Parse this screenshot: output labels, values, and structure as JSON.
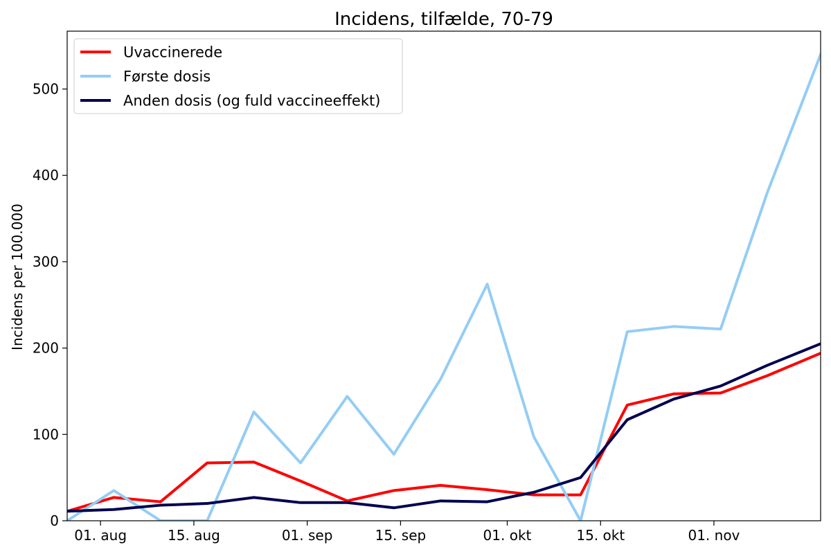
{
  "chart_data": {
    "type": "line",
    "title": "Incidens, tilfælde, 70-79",
    "xlabel": "",
    "ylabel": "Incidens per 100.000",
    "ylim": [
      0,
      567
    ],
    "yticks": [
      0,
      100,
      200,
      300,
      400,
      500
    ],
    "xlim": [
      "2021-07-27",
      "2021-11-17"
    ],
    "xticks": [
      {
        "date": "2021-08-01",
        "label": "01. aug"
      },
      {
        "date": "2021-08-15",
        "label": "15. aug"
      },
      {
        "date": "2021-09-01",
        "label": "01. sep"
      },
      {
        "date": "2021-09-15",
        "label": "15. sep"
      },
      {
        "date": "2021-10-01",
        "label": "01. okt"
      },
      {
        "date": "2021-10-15",
        "label": "15. okt"
      },
      {
        "date": "2021-11-01",
        "label": "01. nov"
      }
    ],
    "grid": false,
    "legend_position": "top-left",
    "x": [
      "2021-07-27",
      "2021-08-03",
      "2021-08-10",
      "2021-08-17",
      "2021-08-24",
      "2021-08-31",
      "2021-09-07",
      "2021-09-14",
      "2021-09-21",
      "2021-09-28",
      "2021-10-05",
      "2021-10-12",
      "2021-10-19",
      "2021-10-26",
      "2021-11-02",
      "2021-11-09",
      "2021-11-17"
    ],
    "series": [
      {
        "name": "Uvaccinerede",
        "color": "#ff0000",
        "values": [
          11,
          27,
          22,
          67,
          68,
          46,
          23,
          35,
          41,
          36,
          30,
          30,
          134,
          147,
          148,
          168,
          194
        ]
      },
      {
        "name": "Første dosis",
        "color": "#94cdf5",
        "values": [
          0,
          35,
          0,
          0,
          126,
          67,
          144,
          77,
          164,
          274,
          97,
          0,
          219,
          225,
          222,
          380,
          540
        ]
      },
      {
        "name": "Anden dosis (og fuld vaccineeffekt)",
        "color": "#000050",
        "values": [
          11,
          13,
          18,
          20,
          27,
          21,
          21,
          15,
          23,
          22,
          33,
          50,
          117,
          141,
          156,
          180,
          205
        ]
      }
    ]
  }
}
